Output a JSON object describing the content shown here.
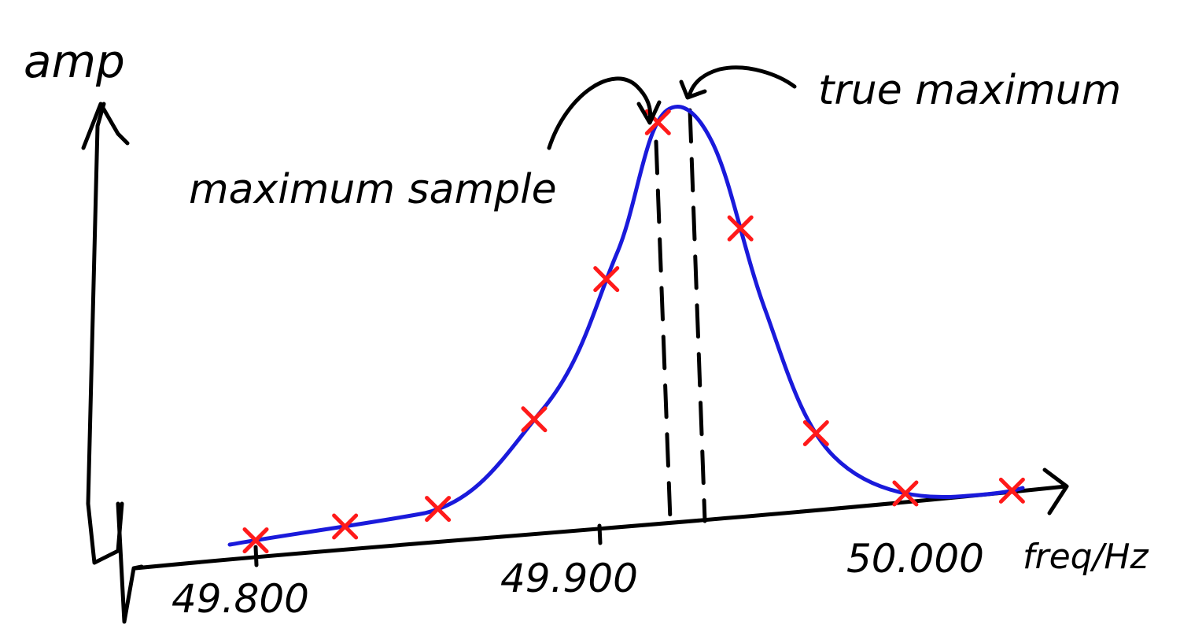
{
  "labels": {
    "y_axis": "amp",
    "x_axis": "freq/Hz",
    "annotation_true": "true maximum",
    "annotation_sample": "maximum sample"
  },
  "ticks": [
    "49.800",
    "49.900",
    "50.000"
  ],
  "colors": {
    "curve": "#1a1adb",
    "samples": "#ff1a1a",
    "ink": "#000000"
  },
  "chart_data": {
    "type": "line",
    "xlabel": "freq/Hz",
    "ylabel": "amp",
    "x_ticks": [
      49.8,
      49.9,
      50.0
    ],
    "series": [
      {
        "values": "peak curve"
      }
    ],
    "samples_x": [
      49.8,
      49.826,
      49.853,
      49.881,
      49.902,
      49.917,
      49.941,
      49.963,
      49.989,
      50.02
    ],
    "true_maximum_x": 49.927,
    "maximum_sample_x": 49.917
  }
}
